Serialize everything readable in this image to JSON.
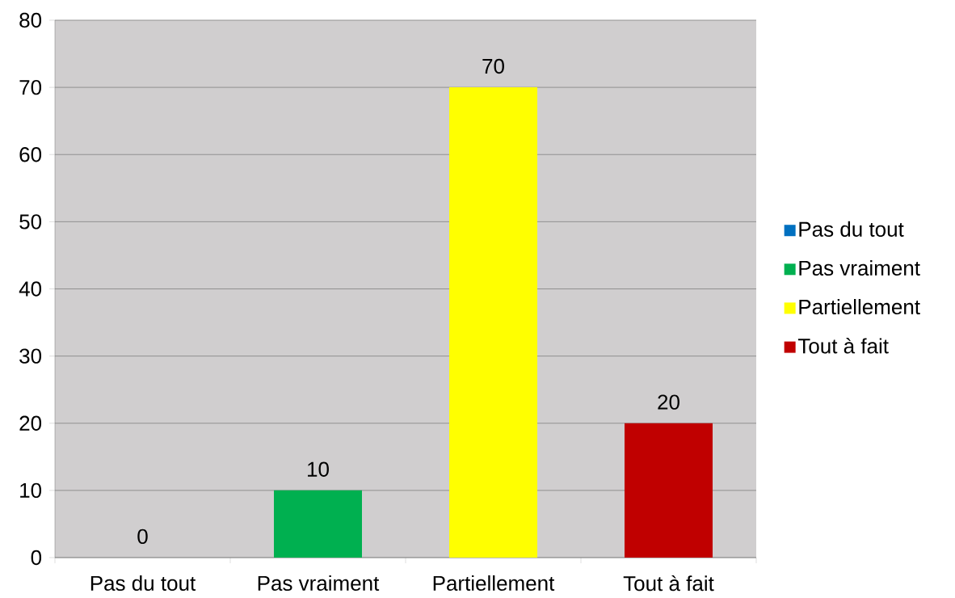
{
  "chart_data": {
    "type": "bar",
    "categories": [
      "Pas du tout",
      "Pas vraiment",
      "Partiellement",
      "Tout à fait"
    ],
    "series": [
      {
        "name": "Pas du tout",
        "color": "#0070c0",
        "values": [
          0,
          null,
          null,
          null
        ]
      },
      {
        "name": "Pas vraiment",
        "color": "#00b050",
        "values": [
          null,
          10,
          null,
          null
        ]
      },
      {
        "name": "Partiellement",
        "color": "#ffff00",
        "values": [
          null,
          null,
          70,
          null
        ]
      },
      {
        "name": "Tout à fait",
        "color": "#c00000",
        "values": [
          null,
          null,
          null,
          20
        ]
      }
    ],
    "ylim": [
      0,
      80
    ],
    "yticks": [
      0,
      10,
      20,
      30,
      40,
      50,
      60,
      70,
      80
    ],
    "grid": "y",
    "legend": "right",
    "data_labels": true
  }
}
